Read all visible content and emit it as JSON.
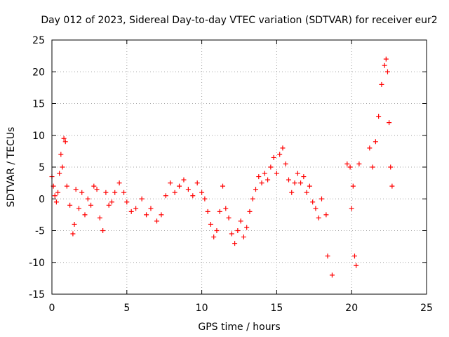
{
  "chart_data": {
    "type": "scatter",
    "title": "Day 012 of 2023, Sidereal Day-to-day VTEC variation (SDTVAR) for receiver eur2",
    "xlabel": "GPS time / hours",
    "ylabel": "SDTVAR / TECUs",
    "xlim": [
      0,
      25
    ],
    "ylim": [
      -15,
      25
    ],
    "xticks": [
      0,
      5,
      10,
      15,
      20,
      25
    ],
    "yticks": [
      -15,
      -10,
      -5,
      0,
      5,
      10,
      15,
      20,
      25
    ],
    "grid": true,
    "marker": "+",
    "color": "#ff0000",
    "series": [
      {
        "name": "eur2",
        "x": [
          0.0,
          0.1,
          0.2,
          0.3,
          0.4,
          0.5,
          0.6,
          0.7,
          0.8,
          0.9,
          1.0,
          1.2,
          1.4,
          1.5,
          1.6,
          1.8,
          2.0,
          2.2,
          2.4,
          2.6,
          2.8,
          3.0,
          3.2,
          3.4,
          3.6,
          3.8,
          4.0,
          4.2,
          4.5,
          4.8,
          5.0,
          5.3,
          5.6,
          6.0,
          6.3,
          6.6,
          7.0,
          7.3,
          7.6,
          7.9,
          8.2,
          8.5,
          8.8,
          9.1,
          9.4,
          9.7,
          10.0,
          10.2,
          10.4,
          10.6,
          10.8,
          11.0,
          11.2,
          11.4,
          11.6,
          11.8,
          12.0,
          12.2,
          12.4,
          12.6,
          12.8,
          13.0,
          13.2,
          13.4,
          13.6,
          13.8,
          14.0,
          14.2,
          14.4,
          14.6,
          14.8,
          15.0,
          15.2,
          15.4,
          15.6,
          15.8,
          16.0,
          16.2,
          16.4,
          16.6,
          16.8,
          17.0,
          17.2,
          17.4,
          17.6,
          17.8,
          18.0,
          18.3,
          18.4,
          18.7,
          19.7,
          19.9,
          20.0,
          20.1,
          20.2,
          20.3,
          20.5,
          21.2,
          21.4,
          21.6,
          21.8,
          22.0,
          22.2,
          22.3,
          22.4,
          22.5,
          22.6,
          22.7
        ],
        "y": [
          3.5,
          2.0,
          0.5,
          -0.5,
          1.0,
          4.0,
          7.0,
          5.0,
          9.5,
          9.0,
          2.0,
          -1.0,
          -5.5,
          -4.0,
          1.5,
          -1.5,
          1.0,
          -2.5,
          0.0,
          -1.0,
          2.0,
          1.5,
          -3.0,
          -5.0,
          1.0,
          -1.0,
          -0.5,
          1.0,
          2.5,
          1.0,
          -0.5,
          -2.0,
          -1.5,
          0.0,
          -2.5,
          -1.5,
          -3.5,
          -2.5,
          0.5,
          2.5,
          1.0,
          2.0,
          3.0,
          1.5,
          0.5,
          2.5,
          1.0,
          0.0,
          -2.0,
          -4.0,
          -6.0,
          -5.0,
          -2.0,
          2.0,
          -1.5,
          -3.0,
          -5.5,
          -7.0,
          -5.0,
          -3.5,
          -6.0,
          -4.5,
          -2.0,
          0.0,
          1.5,
          3.5,
          2.5,
          4.0,
          3.0,
          5.0,
          6.5,
          4.0,
          7.0,
          8.0,
          5.5,
          3.0,
          1.0,
          2.5,
          4.0,
          2.5,
          3.5,
          1.0,
          2.0,
          -0.5,
          -1.5,
          -3.0,
          0.0,
          -2.5,
          -9.0,
          -12.0,
          5.5,
          5.0,
          -1.5,
          2.0,
          -9.0,
          -10.5,
          5.5,
          8.0,
          5.0,
          9.0,
          13.0,
          18.0,
          21.0,
          22.0,
          20.0,
          12.0,
          5.0,
          2.0
        ]
      }
    ]
  }
}
